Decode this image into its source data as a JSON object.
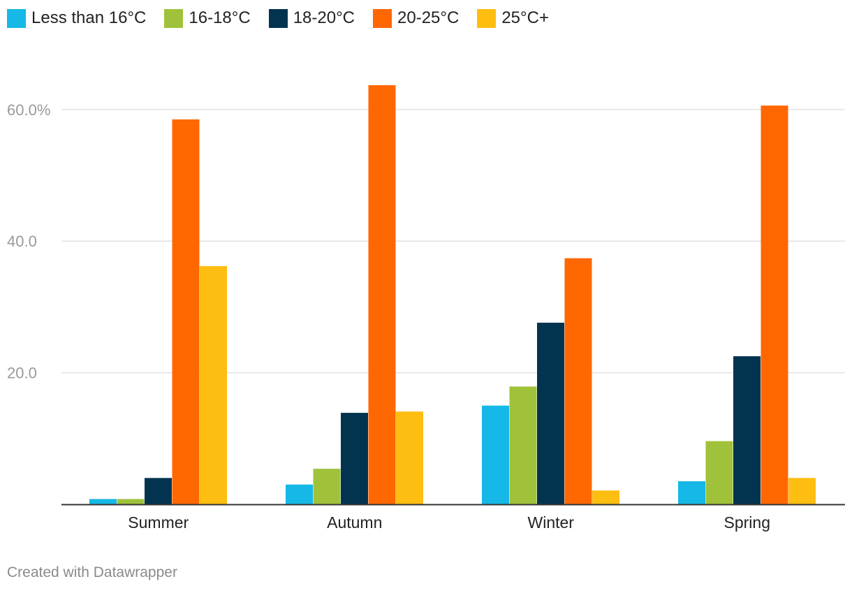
{
  "chart_data": {
    "type": "bar",
    "title": "",
    "xlabel": "",
    "ylabel": "",
    "categories": [
      "Summer",
      "Autumn",
      "Winter",
      "Spring"
    ],
    "series": [
      {
        "name": "Less than 16°C",
        "color": "#15b8e6",
        "values": [
          0.8,
          3.0,
          15.0,
          3.5
        ]
      },
      {
        "name": "16-18°C",
        "color": "#a0c23a",
        "values": [
          0.8,
          5.4,
          17.9,
          9.6
        ]
      },
      {
        "name": "18-20°C",
        "color": "#02344f",
        "values": [
          4.0,
          13.9,
          27.6,
          22.5
        ]
      },
      {
        "name": "20-25°C",
        "color": "#ff6700",
        "values": [
          58.5,
          63.7,
          37.4,
          60.6
        ]
      },
      {
        "name": "25°C+",
        "color": "#febd11",
        "values": [
          36.2,
          14.1,
          2.1,
          4.0
        ]
      }
    ],
    "ylim": [
      0,
      70
    ],
    "yticks": [
      {
        "value": 20,
        "label": "20.0"
      },
      {
        "value": 40,
        "label": "40.0"
      },
      {
        "value": 60,
        "label": "60.0%"
      }
    ],
    "grid": true,
    "legend": "top-left"
  },
  "footer": {
    "credit": "Created with Datawrapper"
  }
}
